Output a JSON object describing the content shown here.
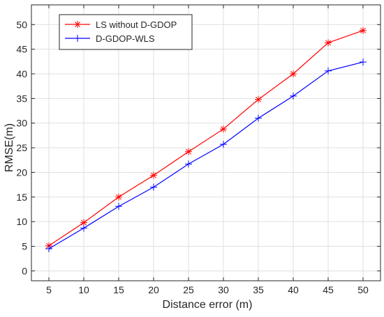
{
  "chart_data": {
    "type": "line",
    "title": "",
    "xlabel": "Distance error (m)",
    "ylabel": "RMSE(m)",
    "x": [
      5,
      10,
      15,
      20,
      25,
      30,
      35,
      40,
      45,
      50
    ],
    "xlim": [
      2.5,
      52.5
    ],
    "ylim": [
      -2,
      54
    ],
    "x_ticks": [
      5,
      10,
      15,
      20,
      25,
      30,
      35,
      40,
      45,
      50
    ],
    "y_ticks": [
      0,
      5,
      10,
      15,
      20,
      25,
      30,
      35,
      40,
      45,
      50
    ],
    "grid": true,
    "legend_position": "top-left",
    "series": [
      {
        "name": "LS without D-GDOP",
        "color": "#ff0000",
        "marker": "asterisk",
        "values": [
          5.1,
          9.8,
          15.0,
          19.4,
          24.2,
          28.8,
          34.8,
          40.0,
          46.3,
          48.8
        ]
      },
      {
        "name": "D-GDOP-WLS",
        "color": "#0000ff",
        "marker": "plus",
        "values": [
          4.5,
          8.7,
          13.1,
          17.0,
          21.7,
          25.7,
          31.0,
          35.5,
          40.6,
          42.4
        ]
      }
    ]
  }
}
